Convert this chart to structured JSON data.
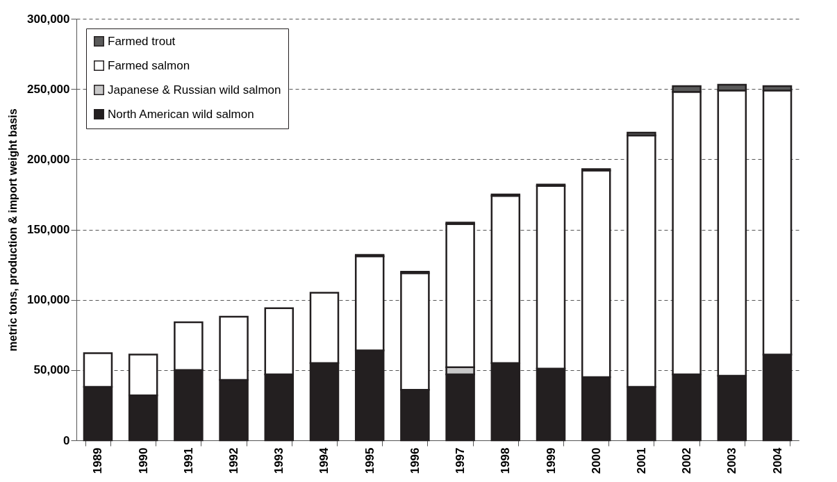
{
  "chart_data": {
    "type": "bar",
    "stacked": true,
    "ylabel": "metric tons, production & import weight basis",
    "categories": [
      "1989",
      "1990",
      "1991",
      "1992",
      "1993",
      "1994",
      "1995",
      "1996",
      "1997",
      "1998",
      "1999",
      "2000",
      "2001",
      "2002",
      "2003",
      "2004"
    ],
    "series": [
      {
        "name": "North American wild salmon",
        "color": "#231f20",
        "values": [
          38000,
          32000,
          50000,
          43000,
          47000,
          55000,
          64000,
          36000,
          47000,
          55000,
          51000,
          45000,
          38000,
          47000,
          46000,
          61000
        ]
      },
      {
        "name": "Japanese & Russian wild salmon",
        "color": "#c8c8c8",
        "values": [
          null,
          null,
          null,
          null,
          null,
          null,
          null,
          null,
          5000,
          null,
          null,
          null,
          null,
          null,
          null,
          null
        ]
      },
      {
        "name": "Farmed salmon",
        "color": "#ffffff",
        "values": [
          24000,
          29000,
          34000,
          45000,
          47000,
          50000,
          67000,
          83000,
          102000,
          119000,
          130000,
          147000,
          179000,
          201000,
          203000,
          188000
        ]
      },
      {
        "name": "Farmed trout",
        "color": "#5a5a5a",
        "values": [
          null,
          null,
          null,
          null,
          null,
          null,
          1000,
          1000,
          1000,
          1000,
          1000,
          1000,
          2000,
          4000,
          4000,
          3000
        ]
      }
    ],
    "ylim": [
      0,
      300000
    ],
    "yticks": [
      0,
      {
        "value": 50000,
        "label": "50,000"
      },
      {
        "value": 100000,
        "label": "100,000"
      },
      {
        "value": 150000,
        "label": "150,000"
      },
      {
        "value": 200000,
        "label": "200,000"
      },
      {
        "value": 250000,
        "label": "250,000"
      },
      {
        "value": 300000,
        "label": "300,000"
      }
    ],
    "grid": "y",
    "legend": "top left"
  }
}
